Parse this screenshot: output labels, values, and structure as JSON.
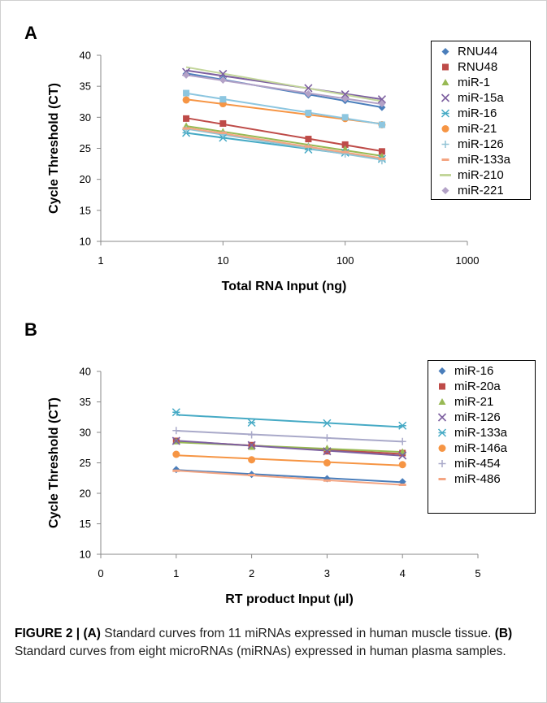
{
  "figure": {
    "panel_a_letter": "A",
    "panel_b_letter": "B",
    "caption_label": "FIGURE 2 |",
    "caption_a_tag": "(A)",
    "caption_a_text": " Standard curves from 11 miRNAs expressed in human muscle tissue. ",
    "caption_b_tag": "(B)",
    "caption_b_text": " Standard curves from eight microRNAs (miRNAs) expressed in human plasma samples."
  },
  "chart_data": [
    {
      "type": "scatter",
      "panel": "A",
      "title": "",
      "xlabel": "Total RNA Input (ng)",
      "ylabel": "Cycle Threshold (CT)",
      "x_scale": "log",
      "xlim": [
        1,
        1000
      ],
      "ylim": [
        10,
        40
      ],
      "x_ticks": [
        "1",
        "10",
        "100",
        "1000"
      ],
      "y_ticks": [
        "10",
        "15",
        "20",
        "25",
        "30",
        "35",
        "40"
      ],
      "grid": false,
      "legend_position": "right",
      "x": [
        5,
        10,
        50,
        100,
        200
      ],
      "series": [
        {
          "name": "RNU44",
          "marker": "diamond",
          "color": "#4a7ebb",
          "values": [
            37.0,
            36.2,
            33.6,
            32.7,
            31.6
          ]
        },
        {
          "name": "RNU48",
          "marker": "square",
          "color": "#be4b48",
          "values": [
            29.8,
            29.0,
            26.5,
            25.6,
            24.5
          ]
        },
        {
          "name": "miR-1",
          "marker": "triangle",
          "color": "#98b954",
          "values": [
            28.6,
            27.7,
            25.4,
            24.9,
            23.7
          ]
        },
        {
          "name": "miR-15a",
          "marker": "x",
          "color": "#7d60a0",
          "values": [
            37.3,
            37.0,
            34.7,
            33.7,
            32.9
          ]
        },
        {
          "name": "miR-16",
          "marker": "asterisk",
          "color": "#46aac5",
          "values": [
            27.5,
            26.7,
            24.8,
            24.3,
            23.3
          ]
        },
        {
          "name": "miR-21",
          "marker": "circle",
          "color": "#f69544",
          "values": [
            32.8,
            32.2,
            30.5,
            29.8,
            28.8
          ]
        },
        {
          "name": "miR-126",
          "marker": "plus",
          "color": "#91c3d5",
          "values": [
            28.0,
            27.3,
            25.2,
            24.1,
            23.0
          ]
        },
        {
          "name": "miR-133a",
          "marker": "dash",
          "color": "#f4a582",
          "values": [
            28.2,
            27.5,
            25.3,
            24.4,
            23.3
          ]
        },
        {
          "name": "miR-210",
          "marker": "line",
          "color": "#c3d69b",
          "values": [
            38.0,
            37.2,
            34.6,
            33.5,
            32.7
          ]
        },
        {
          "name": "miR-221",
          "marker": "diamond",
          "color": "#b3a2c7",
          "values": [
            36.8,
            36.0,
            33.8,
            33.0,
            32.2
          ]
        }
      ],
      "extra_series": [
        {
          "marker": "square",
          "color": "#8cc6e0",
          "values": [
            33.9,
            32.9,
            30.7,
            30.0,
            28.8
          ]
        }
      ]
    },
    {
      "type": "scatter",
      "panel": "B",
      "title": "",
      "xlabel": "RT product Input (µl)",
      "ylabel": "Cycle Threshold (CT)",
      "xlim": [
        0,
        5
      ],
      "ylim": [
        10,
        40
      ],
      "x_ticks": [
        "0",
        "1",
        "2",
        "3",
        "4",
        "5"
      ],
      "y_ticks": [
        "10",
        "15",
        "20",
        "25",
        "30",
        "35",
        "40"
      ],
      "grid": false,
      "legend_position": "right",
      "x": [
        1,
        2,
        3,
        4
      ],
      "series": [
        {
          "name": "miR-16",
          "marker": "diamond",
          "color": "#4a7ebb",
          "values": [
            23.9,
            23.1,
            22.4,
            21.9
          ]
        },
        {
          "name": "miR-20a",
          "marker": "square",
          "color": "#be4b48",
          "values": [
            28.6,
            27.9,
            26.9,
            26.6
          ]
        },
        {
          "name": "miR-21",
          "marker": "triangle",
          "color": "#98b954",
          "values": [
            28.5,
            27.6,
            27.4,
            26.8
          ]
        },
        {
          "name": "miR-126",
          "marker": "x",
          "color": "#7d60a0",
          "values": [
            28.6,
            27.9,
            26.9,
            26.2
          ]
        },
        {
          "name": "miR-133a",
          "marker": "asterisk",
          "color": "#46aac5",
          "values": [
            33.3,
            31.6,
            31.5,
            31.1
          ]
        },
        {
          "name": "miR-146a",
          "marker": "circle",
          "color": "#f69544",
          "values": [
            26.4,
            25.5,
            25.0,
            24.7
          ]
        },
        {
          "name": "miR-454",
          "marker": "plus",
          "color": "#a9a9c9",
          "values": [
            30.3,
            29.6,
            29.1,
            28.5
          ]
        },
        {
          "name": "miR-486",
          "marker": "dash",
          "color": "#f4a582",
          "values": [
            23.7,
            23.0,
            22.1,
            21.4
          ]
        }
      ]
    }
  ]
}
